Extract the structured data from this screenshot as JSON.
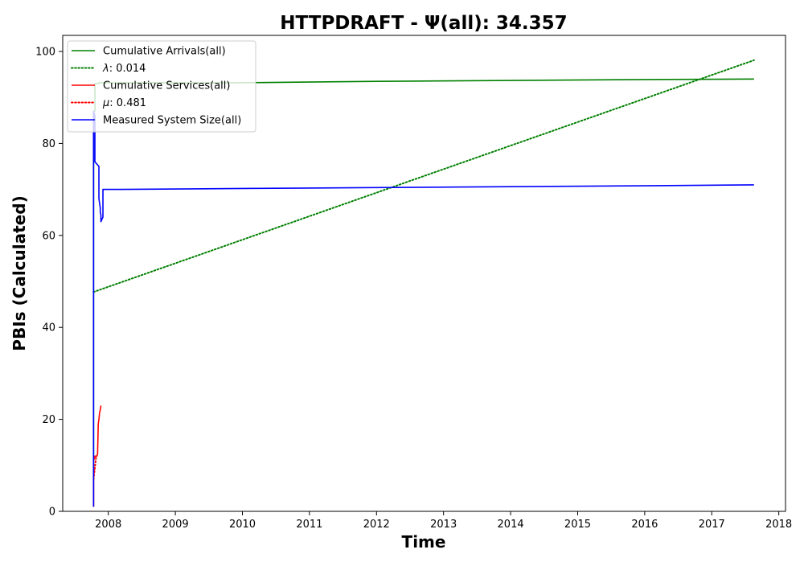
{
  "chart_data": {
    "type": "line",
    "title": "HTTPDRAFT -  Ψ(all): 34.357",
    "xlabel": "Time",
    "ylabel": "PBIs (Calculated)",
    "xlim": [
      2007.32,
      2018.1
    ],
    "ylim": [
      0,
      103.5
    ],
    "x_ticks": [
      "2008",
      "2009",
      "2010",
      "2011",
      "2012",
      "2013",
      "2014",
      "2015",
      "2016",
      "2017",
      "2018"
    ],
    "y_ticks": [
      "0",
      "20",
      "40",
      "60",
      "80",
      "100"
    ],
    "grid": false,
    "legend_position": "top-left",
    "series": [
      {
        "name": "Cumulative Arrivals(all)",
        "color": "#008000",
        "style": "solid",
        "points": [
          [
            2007.78,
            1
          ],
          [
            2007.78,
            87
          ],
          [
            2007.8,
            87
          ],
          [
            2007.8,
            93
          ],
          [
            2007.86,
            93
          ],
          [
            2007.86,
            93.2
          ],
          [
            2008.2,
            93.2
          ],
          [
            2010,
            93.2
          ],
          [
            2012,
            93.5
          ],
          [
            2014,
            93.7
          ],
          [
            2016,
            93.9
          ],
          [
            2017.63,
            94
          ]
        ]
      },
      {
        "name": "λ: 0.014",
        "color": "#008000",
        "style": "dotted",
        "points": [
          [
            2007.78,
            47.7
          ],
          [
            2017.63,
            98.1
          ]
        ]
      },
      {
        "name": "Cumulative Services(all)",
        "color": "#ff0000",
        "style": "solid",
        "points": [
          [
            2007.78,
            1
          ],
          [
            2007.78,
            11
          ],
          [
            2007.8,
            12
          ],
          [
            2007.83,
            12
          ],
          [
            2007.84,
            12.5
          ],
          [
            2007.85,
            19
          ],
          [
            2007.86,
            20
          ],
          [
            2007.87,
            21.5
          ],
          [
            2007.88,
            22
          ],
          [
            2007.89,
            23
          ]
        ]
      },
      {
        "name": "μ: 0.481",
        "color": "#ff0000",
        "style": "dotted",
        "points": [
          [
            2007.78,
            7
          ],
          [
            2007.82,
            12
          ]
        ]
      },
      {
        "name": "Measured System Size(all)",
        "color": "#0000ff",
        "style": "solid",
        "points": [
          [
            2007.78,
            1
          ],
          [
            2007.78,
            87
          ],
          [
            2007.8,
            86
          ],
          [
            2007.8,
            76
          ],
          [
            2007.83,
            75.5
          ],
          [
            2007.86,
            75
          ],
          [
            2007.86,
            68
          ],
          [
            2007.88,
            66
          ],
          [
            2007.88,
            65
          ],
          [
            2007.89,
            64.5
          ],
          [
            2007.89,
            63
          ],
          [
            2007.92,
            64
          ],
          [
            2007.92,
            70
          ],
          [
            2008.2,
            70
          ],
          [
            2010,
            70.2
          ],
          [
            2012,
            70.4
          ],
          [
            2014,
            70.6
          ],
          [
            2016,
            70.8
          ],
          [
            2017.63,
            71
          ]
        ]
      }
    ]
  }
}
